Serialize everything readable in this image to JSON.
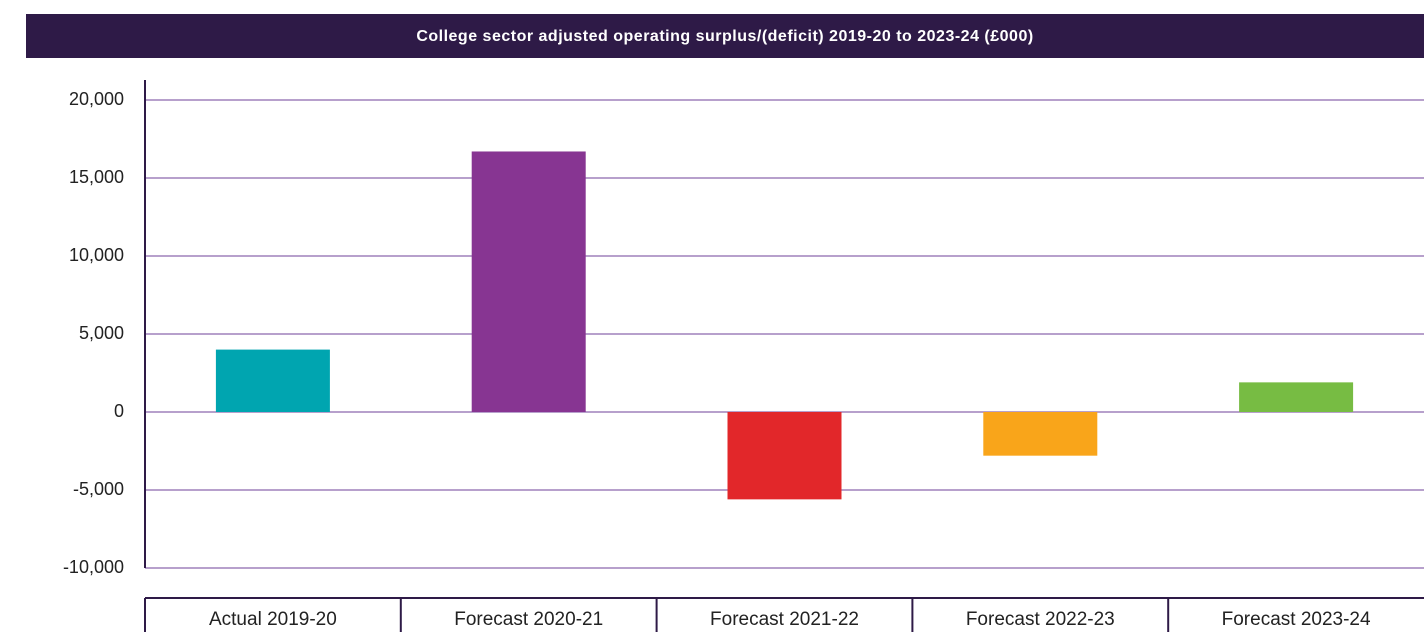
{
  "chart_data": {
    "type": "bar",
    "title": "College sector adjusted operating surplus/(deficit) 2019-20 to 2023-24 (£000)",
    "categories": [
      "Actual 2019-20",
      "Forecast 2020-21",
      "Forecast 2021-22",
      "Forecast 2022-23",
      "Forecast 2023-24"
    ],
    "values": [
      4000,
      16700,
      -5600,
      -2800,
      1900
    ],
    "colors": [
      "#00a5b0",
      "#873592",
      "#e2272a",
      "#f9a51a",
      "#77bc43"
    ],
    "ylim": [
      -10000,
      20000
    ],
    "yticks": [
      {
        "value": -10000,
        "label": "-10,000"
      },
      {
        "value": -5000,
        "label": "-5,000"
      },
      0,
      {
        "value": 5000,
        "label": "5,000"
      },
      {
        "value": 10000,
        "label": "10,000"
      },
      {
        "value": 15000,
        "label": "15,000"
      },
      {
        "value": 20000,
        "label": "20,000"
      }
    ],
    "grid": true
  }
}
